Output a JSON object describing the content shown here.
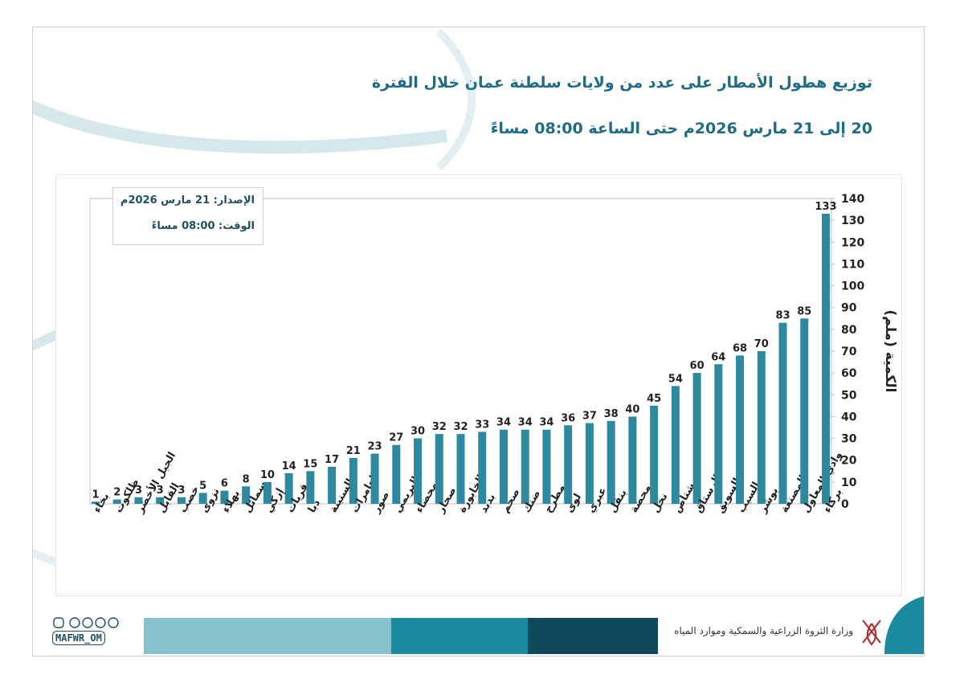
{
  "header": {
    "title_line1": "توزيع هطول الأمطار على عدد من ولايات سلطنة عمان خلال الفترة",
    "title_line2": "20 إلى 21 مارس  2026م حتى الساعة 08:00 مساءً"
  },
  "info_box": {
    "release": "الإصدار: 21 مارس 2026م",
    "time": "الوقت:  08:00 مساءً"
  },
  "footer": {
    "handle": "MAFWR_OM",
    "ministry": "وزارة الثروة الزراعية والسمكية وموارد المياه",
    "bar_colors": [
      "#85c2cb",
      "#1a8aa0",
      "#0e4a5c"
    ]
  },
  "chart_data": {
    "type": "bar",
    "ylabel": "الكمية (ملم)",
    "ylim": [
      0,
      140
    ],
    "yticks": [
      0,
      10,
      20,
      30,
      40,
      50,
      60,
      70,
      80,
      90,
      100,
      110,
      120,
      130,
      140
    ],
    "y_axis_side": "right",
    "grid": false,
    "bar_color": "#2c8aa0",
    "categories": [
      "بخاء",
      "ظلكوت",
      "الجبل الأخضر",
      "القابل",
      "خصب",
      "نزوى",
      "بهلاء",
      "سمائل",
      "إزكي",
      "قريات",
      "دبا",
      "السنينة",
      "العامرات",
      "صور",
      "البريمي",
      "محضاء",
      "صحار",
      "الخابورة",
      "بدبد",
      "صحم",
      "ضنك",
      "مطرح",
      "لوى",
      "عبري",
      "ينقل",
      "محضة",
      "نخل",
      "شناص",
      "الرستاق",
      "السويق",
      "السيب",
      "بوشر",
      "المصنعة",
      "وادي المعاول",
      "بركاء"
    ],
    "values": [
      1,
      2,
      3,
      3,
      3,
      5,
      6,
      8,
      10,
      14,
      15,
      17,
      21,
      23,
      27,
      30,
      32,
      32,
      33,
      34,
      34,
      34,
      36,
      37,
      38,
      40,
      45,
      54,
      60,
      64,
      68,
      70,
      83,
      85,
      133
    ]
  }
}
